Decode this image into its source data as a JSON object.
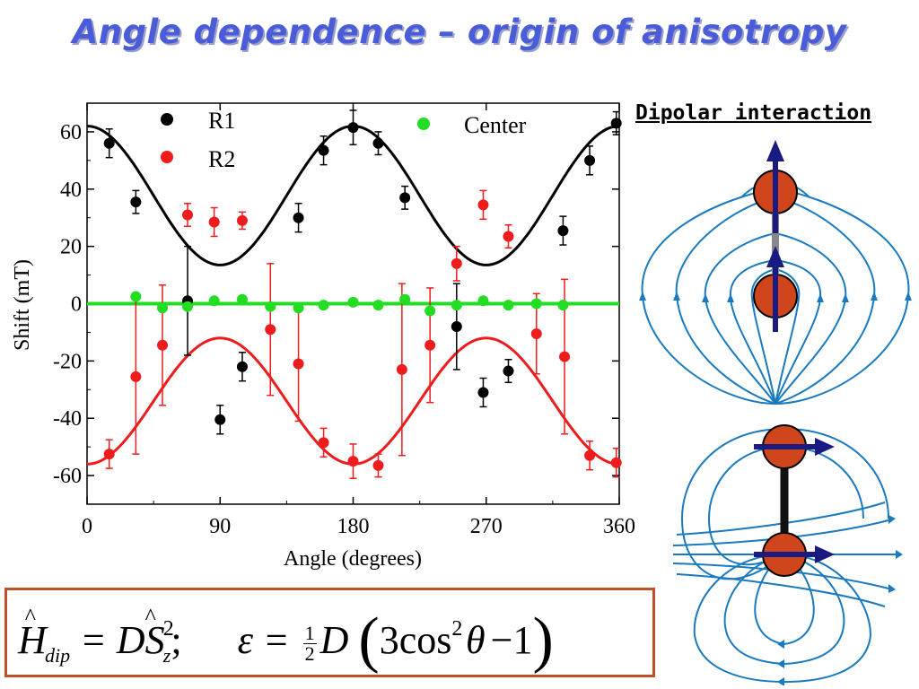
{
  "title": "Angle dependence – origin of anisotropy",
  "dipolar_title": "Dipolar interaction",
  "formula": {
    "h": "H",
    "h_sub": "dip",
    "eq1": "= D",
    "s": "S",
    "s_sup": "2",
    "s_sub": "z",
    "semi": ";",
    "eps": "ε = ",
    "half_num": "1",
    "half_den": "2",
    "d": "D",
    "three_cos": "3cos",
    "cos_sup": "2",
    "theta": "θ",
    "minus_one": "−1"
  },
  "chart_data": {
    "type": "scatter",
    "xlabel": "Angle (degrees)",
    "ylabel": "Shift (mT)",
    "xlim": [
      0,
      360
    ],
    "ylim": [
      -70,
      70
    ],
    "xticks": [
      0,
      90,
      180,
      270,
      360
    ],
    "yticks": [
      60,
      40,
      20,
      0,
      -20,
      -40,
      -60
    ],
    "legend": [
      "R1",
      "R2",
      "Center"
    ],
    "series": [
      {
        "name": "R1",
        "color": "#000000",
        "points": [
          {
            "x": 15,
            "y": 56,
            "err": 5
          },
          {
            "x": 33,
            "y": 35.5,
            "err": 4
          },
          {
            "x": 68,
            "y": 1,
            "err": 19
          },
          {
            "x": 90,
            "y": -40.5,
            "err": 5
          },
          {
            "x": 105,
            "y": -22,
            "err": 5
          },
          {
            "x": 143,
            "y": 30,
            "err": 5
          },
          {
            "x": 160,
            "y": 53.5,
            "err": 5
          },
          {
            "x": 180,
            "y": 61.5,
            "err": 6
          },
          {
            "x": 197,
            "y": 56,
            "err": 4
          },
          {
            "x": 215,
            "y": 37,
            "err": 4
          },
          {
            "x": 250,
            "y": -8,
            "err": 15
          },
          {
            "x": 268,
            "y": -31,
            "err": 5
          },
          {
            "x": 285,
            "y": -23.5,
            "err": 4
          },
          {
            "x": 322,
            "y": 25.5,
            "err": 5
          },
          {
            "x": 340,
            "y": 50,
            "err": 5
          },
          {
            "x": 358,
            "y": 63,
            "err": 4
          }
        ],
        "fit": {
          "a": 48.5,
          "b": 13.5
        }
      },
      {
        "name": "R2",
        "color": "#ee1c1c",
        "points": [
          {
            "x": 15,
            "y": -52.5,
            "err": 5
          },
          {
            "x": 33,
            "y": -25.5,
            "err": 27
          },
          {
            "x": 51,
            "y": -14.5,
            "err": 21
          },
          {
            "x": 68,
            "y": 31,
            "err": 4
          },
          {
            "x": 86,
            "y": 28.5,
            "err": 5
          },
          {
            "x": 105,
            "y": 29,
            "err": 3
          },
          {
            "x": 124,
            "y": -9,
            "err": 23
          },
          {
            "x": 143,
            "y": -21,
            "err": 20
          },
          {
            "x": 160,
            "y": -48.5,
            "err": 5
          },
          {
            "x": 180,
            "y": -55,
            "err": 6
          },
          {
            "x": 197,
            "y": -56.5,
            "err": 4
          },
          {
            "x": 213,
            "y": -23,
            "err": 30
          },
          {
            "x": 232,
            "y": -14.5,
            "err": 20
          },
          {
            "x": 250,
            "y": 14,
            "err": 6
          },
          {
            "x": 268,
            "y": 34.5,
            "err": 5
          },
          {
            "x": 285,
            "y": 23.5,
            "err": 4
          },
          {
            "x": 304,
            "y": -10.5,
            "err": 14
          },
          {
            "x": 323,
            "y": -18.5,
            "err": 27
          },
          {
            "x": 340,
            "y": -53,
            "err": 5
          },
          {
            "x": 358,
            "y": -55.5,
            "err": 5
          }
        ],
        "fit": {
          "a": -44,
          "b": -12
        }
      },
      {
        "name": "Center",
        "color": "#22dd22",
        "points": [
          {
            "x": 33,
            "y": 2.5
          },
          {
            "x": 51,
            "y": -1.5
          },
          {
            "x": 68,
            "y": -1
          },
          {
            "x": 86,
            "y": 1
          },
          {
            "x": 105,
            "y": 1.5
          },
          {
            "x": 124,
            "y": -1
          },
          {
            "x": 143,
            "y": -1.5
          },
          {
            "x": 160,
            "y": -0.5
          },
          {
            "x": 180,
            "y": 0.5
          },
          {
            "x": 197,
            "y": -0.5
          },
          {
            "x": 215,
            "y": 1.5
          },
          {
            "x": 232,
            "y": -2.5
          },
          {
            "x": 250,
            "y": -0.5
          },
          {
            "x": 268,
            "y": 1
          },
          {
            "x": 285,
            "y": -0.5
          },
          {
            "x": 304,
            "y": 0
          },
          {
            "x": 322,
            "y": -0.5
          }
        ],
        "fit": {
          "a": 0,
          "b": 0
        }
      }
    ]
  }
}
